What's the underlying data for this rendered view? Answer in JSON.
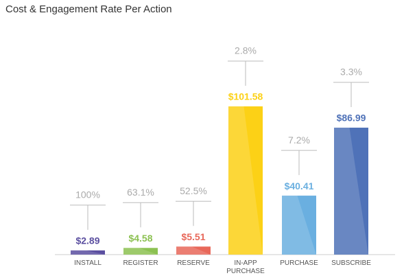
{
  "chart_data": {
    "type": "bar",
    "title": "Cost & Engagement Rate Per Action",
    "categories": [
      "INSTALL",
      "REGISTER",
      "RESERVE",
      "IN-APP PURCHASE",
      "PURCHASE",
      "SUBSCRIBE"
    ],
    "values": [
      2.89,
      4.58,
      5.51,
      101.58,
      40.41,
      86.99
    ],
    "value_labels": [
      "$2.89",
      "$4.58",
      "$5.51",
      "$101.58",
      "$40.41",
      "$86.99"
    ],
    "colors": [
      "#5b4fa0",
      "#8cc152",
      "#e8685a",
      "#fcd116",
      "#6aafe0",
      "#4f72b8"
    ],
    "engagement_rates": [
      100,
      63.1,
      52.5,
      2.8,
      7.2,
      3.3
    ],
    "engagement_rate_labels": [
      "100%",
      "63.1%",
      "52.5%",
      "2.8%",
      "7.2%",
      "3.3%"
    ]
  }
}
